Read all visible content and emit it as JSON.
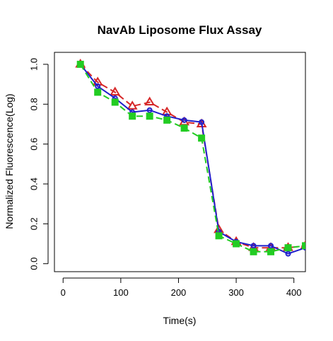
{
  "chart_data": {
    "type": "line",
    "title": "NavAb Liposome Flux Assay",
    "xlabel": "Time(s)",
    "ylabel": "Normalized Fluorescence(Log)",
    "xlim": [
      -15,
      420
    ],
    "ylim": [
      -0.04,
      1.06
    ],
    "xticks": [
      0,
      100,
      200,
      300,
      400
    ],
    "yticks": [
      0.0,
      0.2,
      0.4,
      0.6,
      0.8,
      1.0
    ],
    "xtick_labels": [
      "0",
      "100",
      "200",
      "300",
      "400"
    ],
    "ytick_labels": [
      "0.0",
      "0.2",
      "0.4",
      "0.6",
      "0.8",
      "1.0"
    ],
    "grid": false,
    "legend": "none",
    "series": [
      {
        "color": "#d62728",
        "marker": "triangle-open",
        "line": "dashed",
        "x": [
          30,
          60,
          90,
          120,
          150,
          180,
          210,
          240,
          270,
          300,
          330,
          360,
          390,
          420
        ],
        "y": [
          1.0,
          0.91,
          0.86,
          0.79,
          0.81,
          0.76,
          0.71,
          0.7,
          0.17,
          0.11,
          0.08,
          0.08,
          0.08,
          0.09
        ]
      },
      {
        "color": "#1f1fcc",
        "marker": "circle-open",
        "line": "solid",
        "x": [
          30,
          60,
          90,
          120,
          150,
          180,
          210,
          240,
          270,
          300,
          330,
          360,
          390,
          420
        ],
        "y": [
          1.0,
          0.89,
          0.83,
          0.76,
          0.77,
          0.74,
          0.72,
          0.71,
          0.16,
          0.11,
          0.09,
          0.09,
          0.05,
          0.08
        ]
      },
      {
        "color": "#22cc22",
        "marker": "square-filled",
        "line": "dashed",
        "x": [
          30,
          60,
          90,
          120,
          150,
          180,
          210,
          240,
          270,
          300,
          330,
          360,
          390,
          420
        ],
        "y": [
          1.0,
          0.86,
          0.81,
          0.74,
          0.74,
          0.72,
          0.68,
          0.63,
          0.14,
          0.1,
          0.06,
          0.06,
          0.08,
          0.09
        ]
      }
    ]
  }
}
